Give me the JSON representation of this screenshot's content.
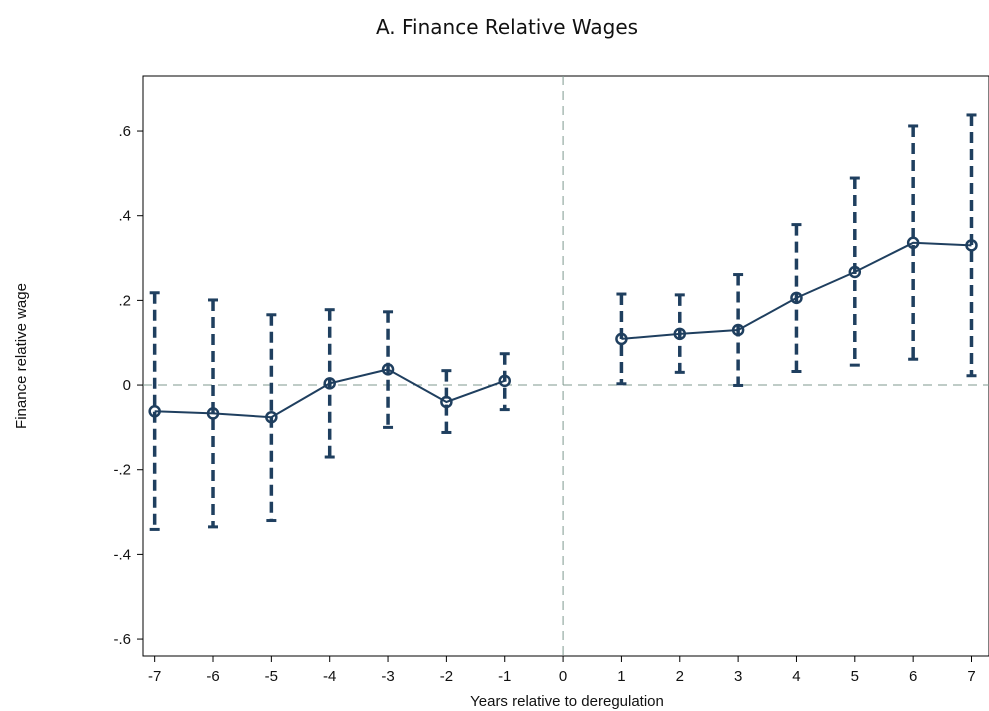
{
  "chart_data": {
    "type": "scatter",
    "title": "A. Finance Relative Wages",
    "xlabel": "Years relative to deregulation",
    "ylabel": "Finance relative wage",
    "xlim": [
      -7.2,
      7.3
    ],
    "ylim": [
      -0.64,
      0.73
    ],
    "x_ticks": [
      -7,
      -6,
      -5,
      -4,
      -3,
      -2,
      -1,
      0,
      1,
      2,
      3,
      4,
      5,
      6,
      7
    ],
    "x_tick_labels": [
      "-7",
      "-6",
      "-5",
      "-4",
      "-3",
      "-2",
      "-1",
      "0",
      "1",
      "2",
      "3",
      "4",
      "5",
      "6",
      "7"
    ],
    "y_ticks": [
      -0.6,
      -0.4,
      -0.2,
      0,
      0.2,
      0.4,
      0.6
    ],
    "y_tick_labels": [
      "-.6",
      "-.4",
      "-.2",
      "0",
      ".2",
      ".4",
      ".6"
    ],
    "reference_lines": {
      "x": 0,
      "y": 0
    },
    "grid": false,
    "series": [
      {
        "segment": "pre",
        "x": [
          -7,
          -6,
          -5,
          -4,
          -3,
          -2,
          -1
        ],
        "y": [
          -0.062,
          -0.067,
          -0.076,
          0.004,
          0.037,
          -0.04,
          0.01
        ],
        "ci_low": [
          -0.341,
          -0.335,
          -0.32,
          -0.17,
          -0.1,
          -0.112,
          -0.058
        ],
        "ci_high": [
          0.218,
          0.201,
          0.166,
          0.178,
          0.173,
          0.034,
          0.074
        ]
      },
      {
        "segment": "post",
        "x": [
          1,
          2,
          3,
          4,
          5,
          6,
          7
        ],
        "y": [
          0.109,
          0.121,
          0.13,
          0.206,
          0.267,
          0.336,
          0.33
        ],
        "ci_low": [
          0.003,
          0.03,
          -0.001,
          0.032,
          0.047,
          0.061,
          0.022
        ],
        "ci_high": [
          0.215,
          0.213,
          0.261,
          0.379,
          0.489,
          0.612,
          0.638
        ]
      }
    ],
    "colors": {
      "series": "#1f3f5f",
      "reference": "#7f9a8f",
      "frame": "#000000"
    }
  }
}
